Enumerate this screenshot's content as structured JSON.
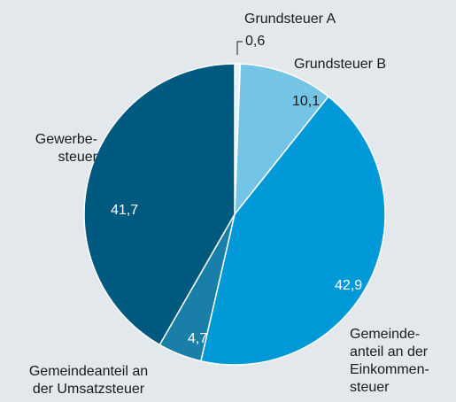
{
  "chart_data": {
    "type": "pie",
    "categories": [
      "Grundsteuer A",
      "Grundsteuer B",
      "Gemeinde-\nanteil an der\nEinkommen-\nsteuer",
      "Gemeindeanteil an\nder Umsatzsteuer",
      "Gewerbe-\nsteuer"
    ],
    "values": [
      0.6,
      10.1,
      42.9,
      4.7,
      41.7
    ],
    "value_labels": [
      "0,6",
      "10,1",
      "42,9",
      "4,7",
      "41,7"
    ],
    "colors": [
      "#e4f2f9",
      "#74c4e6",
      "#0099d8",
      "#1a7fa8",
      "#005a80"
    ]
  }
}
